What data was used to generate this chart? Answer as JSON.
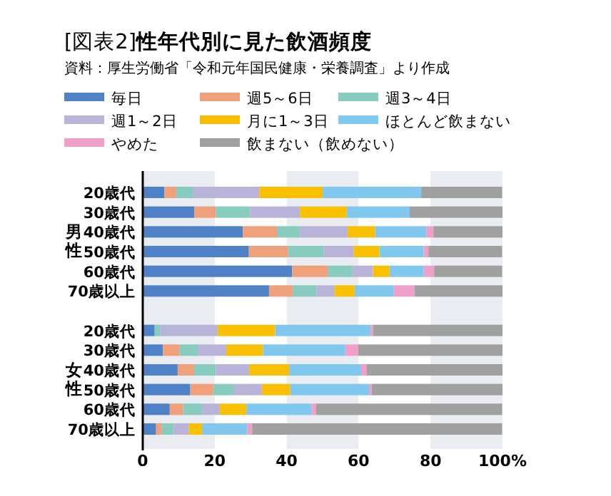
{
  "chart_data": {
    "type": "bar",
    "orientation": "horizontal",
    "stacked": true,
    "title": "[図表2]**性年代別に見た飲酒頻度**",
    "subtitle": "資料：厚生労働省「令和元年国民健康・栄養調査」より作成",
    "categories": [
      "20歳代",
      "30歳代",
      "40歳代",
      "50歳代",
      "60歳代",
      "70歳以上",
      null,
      "20歳代",
      "30歳代",
      "40歳代",
      "50歳代",
      "60歳代",
      "70歳以上"
    ],
    "annotations": [
      "男性",
      "女性"
    ],
    "series": [
      {
        "name": "毎日",
        "color": "#4f81c7",
        "values": [
          6.0,
          14.3,
          27.8,
          29.5,
          41.5,
          35.1,
          null,
          3.3,
          5.6,
          9.7,
          13.2,
          7.5,
          3.7
        ]
      },
      {
        "name": "週5～6日",
        "color": "#f0a07a",
        "values": [
          3.3,
          6.0,
          9.5,
          10.9,
          9.9,
          6.6,
          null,
          0,
          4.6,
          4.6,
          6.4,
          3.7,
          1.6
        ]
      },
      {
        "name": "週3～4日",
        "color": "#88cbbf",
        "values": [
          4.6,
          9.5,
          6.4,
          9.9,
          6.9,
          6.6,
          null,
          1.6,
          5.3,
          6.0,
          5.6,
          5.3,
          3.3
        ]
      },
      {
        "name": "週1～2日",
        "color": "#b9b3d9",
        "values": [
          18.5,
          13.9,
          13.2,
          8.3,
          5.7,
          5.0,
          null,
          15.9,
          7.7,
          9.3,
          7.9,
          4.9,
          4.2
        ]
      },
      {
        "name": "月に1～3日",
        "color": "#f8c000",
        "values": [
          17.6,
          13.0,
          7.7,
          7.2,
          4.6,
          5.6,
          null,
          16.0,
          10.2,
          11.1,
          7.9,
          7.4,
          3.7
        ]
      },
      {
        "name": "ほとんど飲まない",
        "color": "#80c8ee",
        "values": [
          27.4,
          17.5,
          14.2,
          12.3,
          9.5,
          10.9,
          null,
          26.5,
          22.9,
          20.0,
          21.9,
          18.1,
          12.6
        ]
      },
      {
        "name": "やめた",
        "color": "#f0a0c8",
        "values": [
          0,
          0,
          2.0,
          1.3,
          2.9,
          5.7,
          null,
          0.7,
          3.6,
          1.6,
          0.7,
          1.3,
          1.3
        ]
      },
      {
        "name": "飲まない（飲めない）",
        "color": "#a0a0a0",
        "values": [
          22.5,
          25.8,
          19.2,
          20.5,
          18.9,
          24.5,
          null,
          36.0,
          40.1,
          37.7,
          36.4,
          51.7,
          69.5
        ]
      }
    ],
    "xlim": [
      0,
      100
    ],
    "xticks": [
      0,
      20,
      40,
      60,
      80,
      {
        "value": 100,
        "label": "100%"
      }
    ],
    "bands": [
      {
        "axis": "x",
        "from": 0,
        "to": 20,
        "color": "#e9ecf0"
      },
      {
        "axis": "x",
        "from": 40,
        "to": 60,
        "color": "#e9ecf0"
      },
      {
        "axis": "x",
        "from": 80,
        "to": 100,
        "color": "#e9ecf0"
      }
    ],
    "legend": "top"
  }
}
